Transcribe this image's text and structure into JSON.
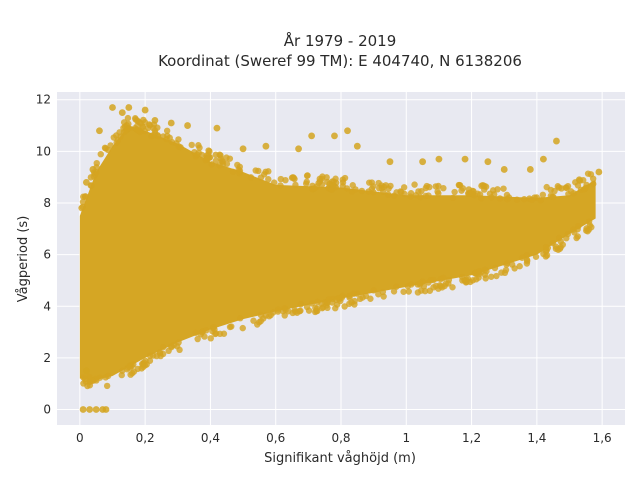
{
  "chart_data": {
    "type": "scatter",
    "title_lines": [
      "År 1979 - 2019",
      "Koordinat (Sweref 99 TM): E 404740, N 6138206"
    ],
    "xlabel": "Signifikant våghöjd (m)",
    "ylabel": "Vågperiod (s)",
    "xlim": [
      -0.07,
      1.67
    ],
    "ylim": [
      -0.6,
      12.3
    ],
    "x_ticks": [
      0,
      0.2,
      0.4,
      0.6,
      0.8,
      1,
      1.2,
      1.4,
      1.6
    ],
    "x_tick_labels": [
      "0",
      "0,2",
      "0,4",
      "0,6",
      "0,8",
      "1",
      "1,2",
      "1,4",
      "1,6"
    ],
    "y_ticks": [
      0,
      2,
      4,
      6,
      8,
      10,
      12
    ],
    "y_tick_labels": [
      "0",
      "2",
      "4",
      "6",
      "8",
      "10",
      "12"
    ],
    "grid": true,
    "point_color": "#d4a420",
    "plot_background": "#e8e9f1",
    "envelope_lower": [
      [
        0.0,
        1.2
      ],
      [
        0.05,
        1.15
      ],
      [
        0.1,
        1.3
      ],
      [
        0.2,
        2.0
      ],
      [
        0.3,
        2.6
      ],
      [
        0.4,
        3.1
      ],
      [
        0.5,
        3.5
      ],
      [
        0.6,
        3.8
      ],
      [
        0.8,
        4.3
      ],
      [
        1.0,
        4.75
      ],
      [
        1.2,
        5.2
      ],
      [
        1.4,
        6.0
      ],
      [
        1.5,
        6.8
      ],
      [
        1.58,
        7.4
      ]
    ],
    "envelope_upper": [
      [
        0.0,
        7.5
      ],
      [
        0.05,
        9.2
      ],
      [
        0.1,
        10.2
      ],
      [
        0.15,
        11.0
      ],
      [
        0.2,
        10.8
      ],
      [
        0.3,
        10.3
      ],
      [
        0.4,
        9.6
      ],
      [
        0.5,
        9.2
      ],
      [
        0.6,
        8.7
      ],
      [
        0.8,
        8.6
      ],
      [
        1.0,
        8.3
      ],
      [
        1.2,
        8.3
      ],
      [
        1.4,
        8.2
      ],
      [
        1.5,
        8.3
      ],
      [
        1.58,
        8.9
      ]
    ],
    "sampled_points": [
      [
        0.01,
        0
      ],
      [
        0.03,
        0
      ],
      [
        0.05,
        0
      ],
      [
        0.07,
        0
      ],
      [
        0.08,
        0
      ],
      [
        0.06,
        10.8
      ],
      [
        0.1,
        11.7
      ],
      [
        0.13,
        11.5
      ],
      [
        0.15,
        11.7
      ],
      [
        0.2,
        11.6
      ],
      [
        0.23,
        11.2
      ],
      [
        0.28,
        11.1
      ],
      [
        0.33,
        11.0
      ],
      [
        0.42,
        10.9
      ],
      [
        0.5,
        10.1
      ],
      [
        0.57,
        10.2
      ],
      [
        0.67,
        10.1
      ],
      [
        0.71,
        10.6
      ],
      [
        0.78,
        10.6
      ],
      [
        0.82,
        10.8
      ],
      [
        0.85,
        10.2
      ],
      [
        0.95,
        9.6
      ],
      [
        1.05,
        9.6
      ],
      [
        1.1,
        9.7
      ],
      [
        1.18,
        9.7
      ],
      [
        1.25,
        9.6
      ],
      [
        1.3,
        9.3
      ],
      [
        1.38,
        9.3
      ],
      [
        1.42,
        9.7
      ],
      [
        1.46,
        10.4
      ],
      [
        1.53,
        8.9
      ],
      [
        1.59,
        9.2
      ],
      [
        0.02,
        8.8
      ],
      [
        0.04,
        9.3
      ],
      [
        0.02,
        1.5
      ]
    ]
  }
}
